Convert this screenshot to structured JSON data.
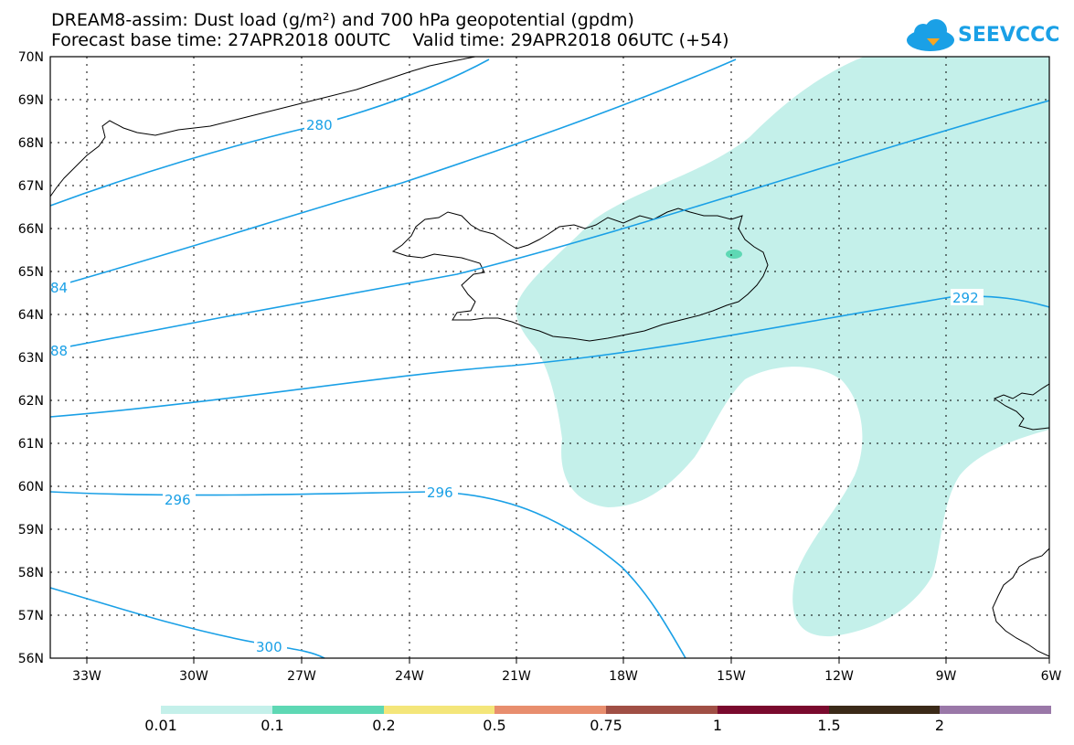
{
  "header": {
    "title_line1": "DREAM8-assim: Dust load (g/m²) and 700 hPa geopotential (gpdm)",
    "title_line2": "Forecast base time: 27APR2018 00UTC    Valid time: 29APR2018 06UTC (+54)"
  },
  "logo": {
    "text": "SEEVCCC"
  },
  "map": {
    "lat_labels": [
      "70N",
      "69N",
      "68N",
      "67N",
      "66N",
      "65N",
      "64N",
      "63N",
      "62N",
      "61N",
      "60N",
      "59N",
      "58N",
      "57N",
      "56N"
    ],
    "lon_labels": [
      "33W",
      "30W",
      "27W",
      "24W",
      "21W",
      "18W",
      "15W",
      "12W",
      "9W",
      "6W"
    ],
    "contour_labels": [
      "280",
      "84",
      "88",
      "292",
      "296",
      "296",
      "300"
    ],
    "colors": {
      "contour": "#1aa0e6",
      "dust_low": "#c4f0ea",
      "dust_mid": "#5ed8b4"
    }
  },
  "colorbar": {
    "labels": [
      "0.01",
      "0.1",
      "0.2",
      "0.5",
      "0.75",
      "1",
      "1.5",
      "2"
    ],
    "colors": [
      "#c4f0ea",
      "#5ed8b4",
      "#f4e67a",
      "#e88e6e",
      "#a04f45",
      "#7a0a2e",
      "#3b2a18",
      "#9a78a8"
    ]
  }
}
